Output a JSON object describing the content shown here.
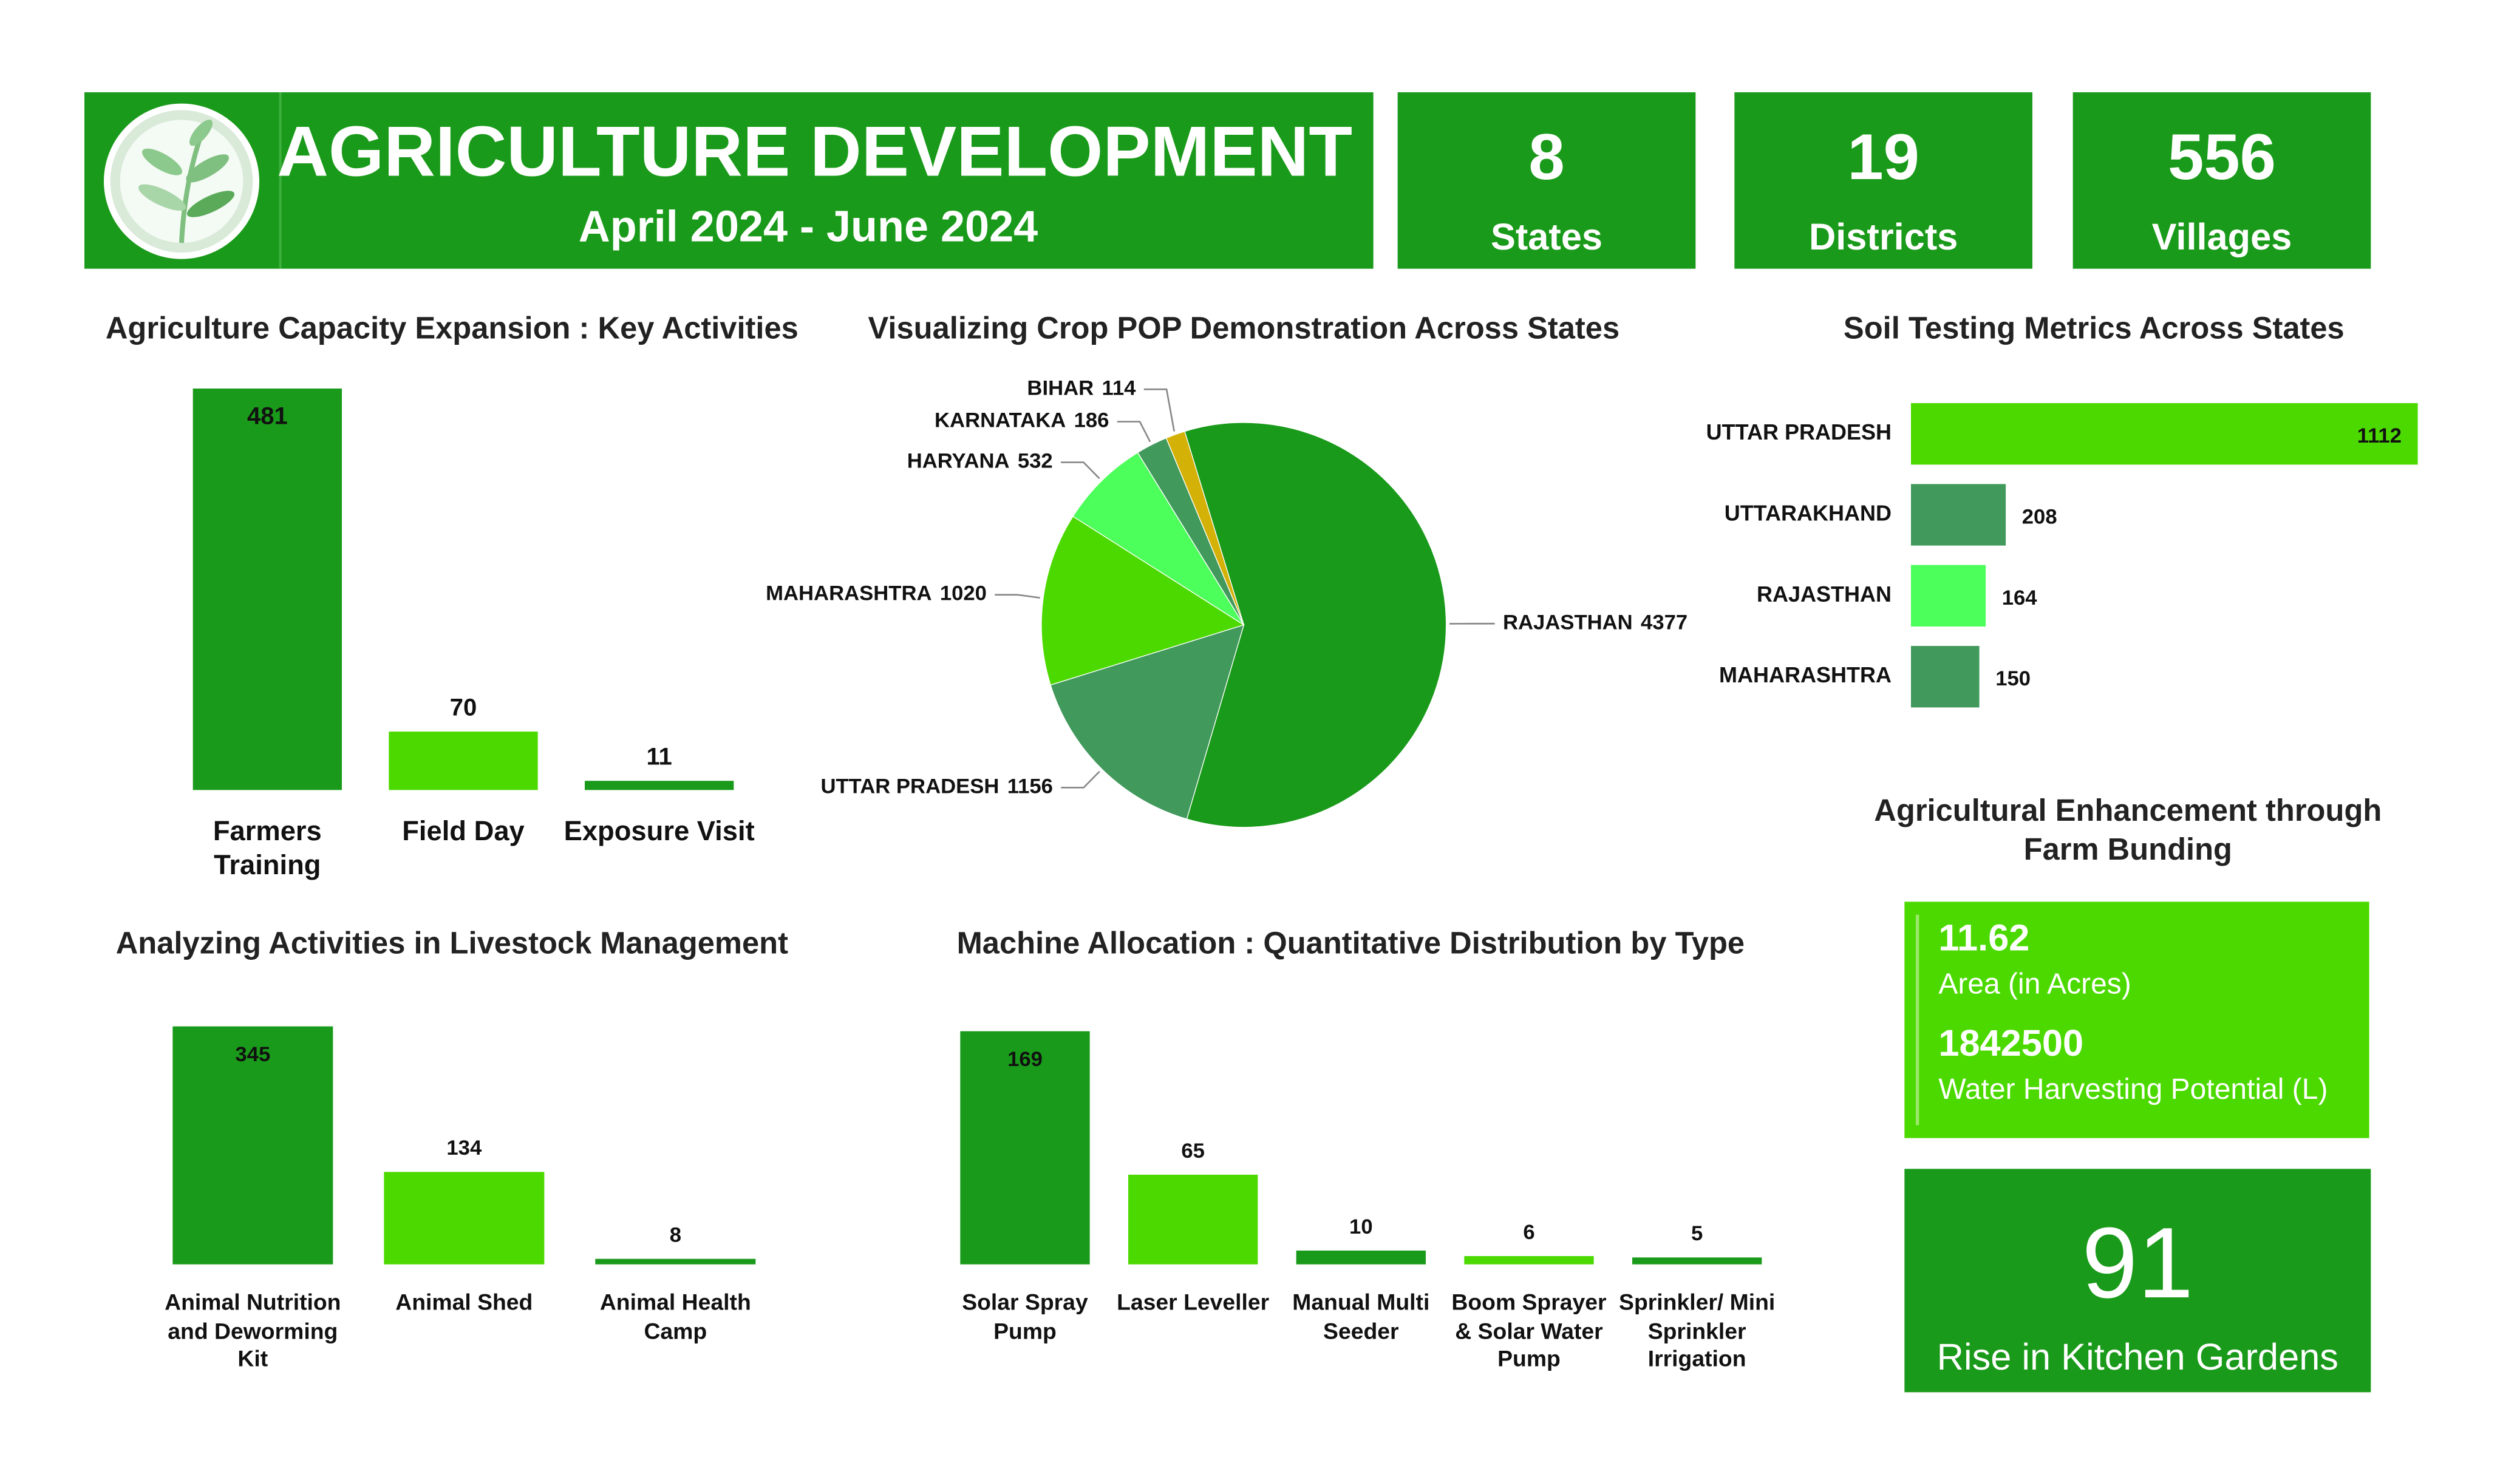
{
  "header": {
    "title": "AGRICULTURE DEVELOPMENT",
    "subtitle": "April 2024 - June 2024"
  },
  "kpis": [
    {
      "value": 8,
      "label": "States"
    },
    {
      "value": 19,
      "label": "Districts"
    },
    {
      "value": 556,
      "label": "Villages"
    }
  ],
  "farm_bunding": {
    "title": "Agricultural Enhancement through Farm Bunding",
    "area": 11.62,
    "area_label": "Area (in Acres)",
    "water": 1842500,
    "water_label": "Water Harvesting Potential (L)"
  },
  "kitchen_gardens": {
    "value": 91,
    "label": "Rise in Kitchen Gardens"
  },
  "chart_data": [
    {
      "type": "bar",
      "title": "Agriculture Capacity Expansion : Key Activities",
      "categories": [
        "Farmers Training",
        "Field Day",
        "Exposure Visit"
      ],
      "values": [
        481,
        70,
        11
      ],
      "colors": [
        "#1a9a1a",
        "#4cd900",
        "#1a9a1a"
      ]
    },
    {
      "type": "pie",
      "title": "Visualizing Crop POP Demonstration Across States",
      "categories": [
        "RAJASTHAN",
        "UTTAR PRADESH",
        "MAHARASHTRA",
        "HARYANA",
        "KARNATAKA",
        "BIHAR"
      ],
      "values": [
        4377,
        1156,
        1020,
        532,
        186,
        114
      ],
      "colors": [
        "#1a9a1a",
        "#41995c",
        "#4cd900",
        "#4cff5a",
        "#41995c",
        "#d4b106"
      ]
    },
    {
      "type": "barh",
      "title": "Soil Testing Metrics Across States",
      "categories": [
        "UTTAR PRADESH",
        "UTTARAKHAND",
        "RAJASTHAN",
        "MAHARASHTRA"
      ],
      "values": [
        1112,
        208,
        164,
        150
      ],
      "colors": [
        "#4cd900",
        "#41995c",
        "#4cff5a",
        "#41995c"
      ]
    },
    {
      "type": "bar",
      "title": "Analyzing Activities in Livestock Management",
      "categories": [
        "Animal Nutrition and Deworming Kit",
        "Animal Shed",
        "Animal Health Camp"
      ],
      "values": [
        345,
        134,
        8
      ],
      "colors": [
        "#1a9a1a",
        "#4cd900",
        "#1a9a1a"
      ]
    },
    {
      "type": "bar",
      "title": "Machine Allocation : Quantitative Distribution by Type",
      "categories": [
        "Solar Spray Pump",
        "Laser Leveller",
        "Manual Multi Seeder",
        "Boom Sprayer & Solar Water Pump",
        "Sprinkler/ Mini Sprinkler Irrigation"
      ],
      "values": [
        169,
        65,
        10,
        6,
        5
      ],
      "colors": [
        "#1a9a1a",
        "#4cd900",
        "#1a9a1a",
        "#4cd900",
        "#1a9a1a"
      ]
    }
  ]
}
